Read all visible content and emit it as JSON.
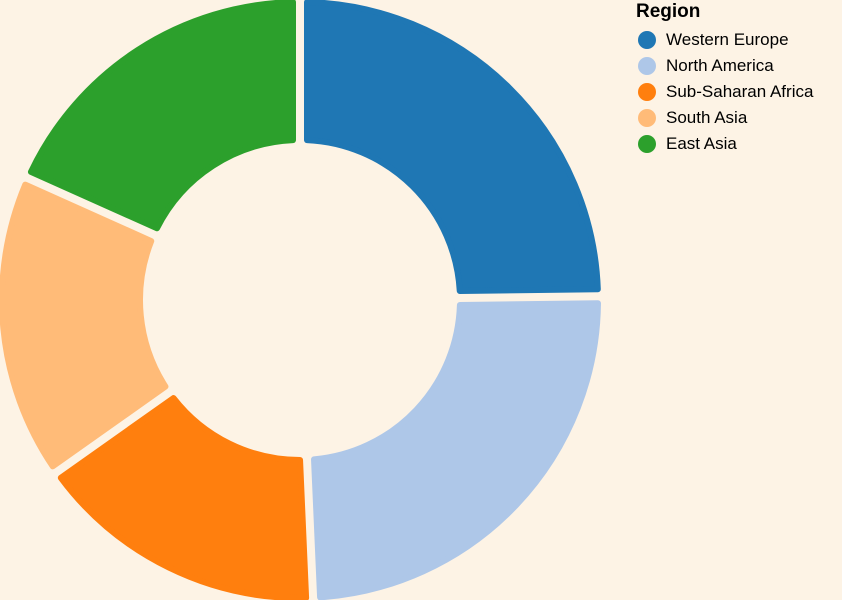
{
  "chart_data": {
    "type": "pie",
    "variant": "donut",
    "legend_title": "Region",
    "legend_position": "top-right",
    "categories": [
      "Western Europe",
      "North America",
      "Sub-Saharan Africa",
      "South Asia",
      "East Asia"
    ],
    "values": [
      24.8,
      24.5,
      15.9,
      16.5,
      18.3
    ],
    "colors": [
      "#1f77b4",
      "#aec7e8",
      "#ff7f0e",
      "#ffbb78",
      "#2ca02c"
    ],
    "background": "#fdf3e5"
  }
}
